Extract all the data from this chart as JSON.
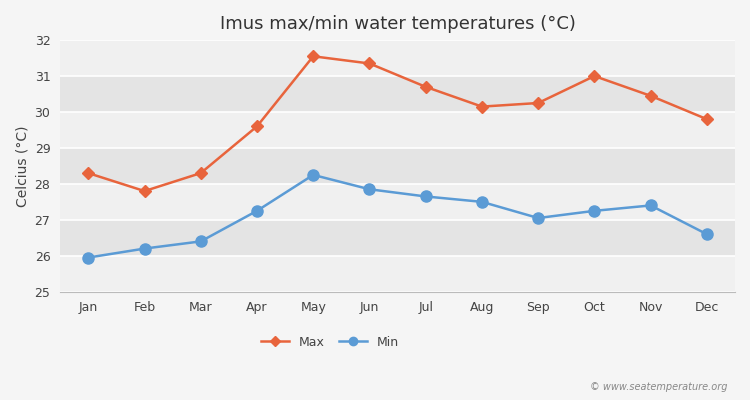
{
  "title": "Imus max/min water temperatures (°C)",
  "ylabel": "Celcius (°C)",
  "months": [
    "Jan",
    "Feb",
    "Mar",
    "Apr",
    "May",
    "Jun",
    "Jul",
    "Aug",
    "Sep",
    "Oct",
    "Nov",
    "Dec"
  ],
  "max_temps": [
    28.3,
    27.8,
    28.3,
    29.6,
    31.55,
    31.35,
    30.7,
    30.15,
    30.25,
    31.0,
    30.45,
    29.8
  ],
  "min_temps": [
    25.95,
    26.2,
    26.4,
    27.25,
    28.25,
    27.85,
    27.65,
    27.5,
    27.05,
    27.25,
    27.4,
    26.6
  ],
  "max_color": "#e8643c",
  "min_color": "#5b9bd5",
  "bg_color": "#f5f5f5",
  "band_light": "#f0f0f0",
  "band_dark": "#e4e4e4",
  "ylim": [
    25,
    32
  ],
  "yticks": [
    25,
    26,
    27,
    28,
    29,
    30,
    31,
    32
  ],
  "title_fontsize": 13,
  "axis_label_fontsize": 10,
  "tick_fontsize": 9,
  "legend_fontsize": 9,
  "watermark": "© www.seatemperature.org",
  "linewidth": 1.8,
  "markersize_max": 6,
  "markersize_min": 8
}
